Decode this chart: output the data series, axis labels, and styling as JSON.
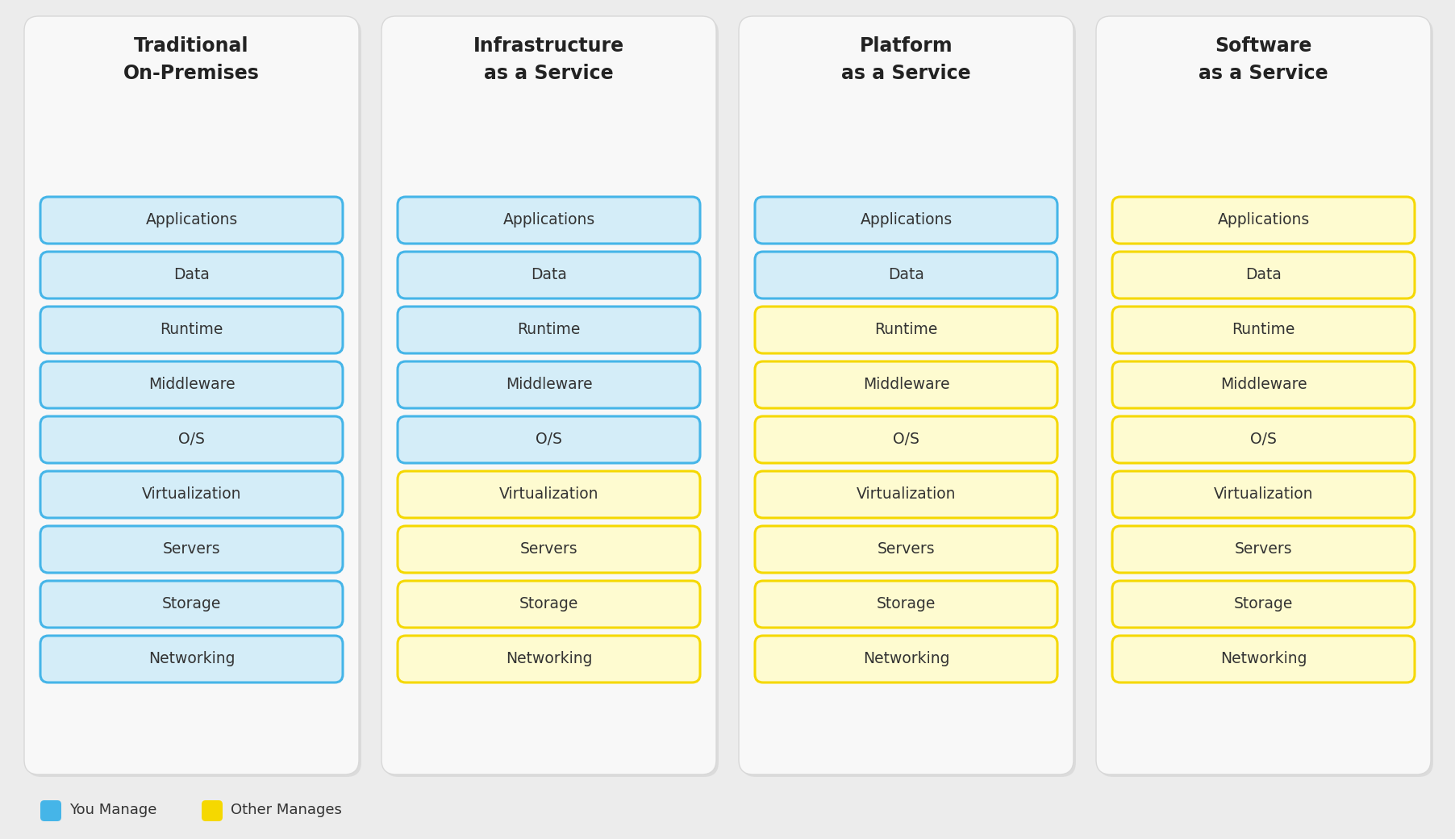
{
  "background_color": "#ececec",
  "panel_color": "#f8f8f8",
  "title_font_size": 17,
  "label_font_size": 13.5,
  "legend_font_size": 13,
  "columns": [
    {
      "title": "Traditional\nOn-Premises",
      "items": [
        {
          "label": "Applications",
          "managed_by": "you"
        },
        {
          "label": "Data",
          "managed_by": "you"
        },
        {
          "label": "Runtime",
          "managed_by": "you"
        },
        {
          "label": "Middleware",
          "managed_by": "you"
        },
        {
          "label": "O/S",
          "managed_by": "you"
        },
        {
          "label": "Virtualization",
          "managed_by": "you"
        },
        {
          "label": "Servers",
          "managed_by": "you"
        },
        {
          "label": "Storage",
          "managed_by": "you"
        },
        {
          "label": "Networking",
          "managed_by": "you"
        }
      ]
    },
    {
      "title": "Infrastructure\nas a Service",
      "items": [
        {
          "label": "Applications",
          "managed_by": "you"
        },
        {
          "label": "Data",
          "managed_by": "you"
        },
        {
          "label": "Runtime",
          "managed_by": "you"
        },
        {
          "label": "Middleware",
          "managed_by": "you"
        },
        {
          "label": "O/S",
          "managed_by": "you"
        },
        {
          "label": "Virtualization",
          "managed_by": "other"
        },
        {
          "label": "Servers",
          "managed_by": "other"
        },
        {
          "label": "Storage",
          "managed_by": "other"
        },
        {
          "label": "Networking",
          "managed_by": "other"
        }
      ]
    },
    {
      "title": "Platform\nas a Service",
      "items": [
        {
          "label": "Applications",
          "managed_by": "you"
        },
        {
          "label": "Data",
          "managed_by": "you"
        },
        {
          "label": "Runtime",
          "managed_by": "other"
        },
        {
          "label": "Middleware",
          "managed_by": "other"
        },
        {
          "label": "O/S",
          "managed_by": "other"
        },
        {
          "label": "Virtualization",
          "managed_by": "other"
        },
        {
          "label": "Servers",
          "managed_by": "other"
        },
        {
          "label": "Storage",
          "managed_by": "other"
        },
        {
          "label": "Networking",
          "managed_by": "other"
        }
      ]
    },
    {
      "title": "Software\nas a Service",
      "items": [
        {
          "label": "Applications",
          "managed_by": "other"
        },
        {
          "label": "Data",
          "managed_by": "other"
        },
        {
          "label": "Runtime",
          "managed_by": "other"
        },
        {
          "label": "Middleware",
          "managed_by": "other"
        },
        {
          "label": "O/S",
          "managed_by": "other"
        },
        {
          "label": "Virtualization",
          "managed_by": "other"
        },
        {
          "label": "Servers",
          "managed_by": "other"
        },
        {
          "label": "Storage",
          "managed_by": "other"
        },
        {
          "label": "Networking",
          "managed_by": "other"
        }
      ]
    }
  ],
  "you_fill_color": "#d4edf8",
  "you_edge_color": "#45b5e8",
  "other_fill_color": "#fefbd0",
  "other_edge_color": "#f5d800",
  "legend_you_color": "#45b5e8",
  "legend_other_color": "#f5d800",
  "text_color": "#333333",
  "title_color": "#222222",
  "panel_edge_color": "#d8d8d8"
}
